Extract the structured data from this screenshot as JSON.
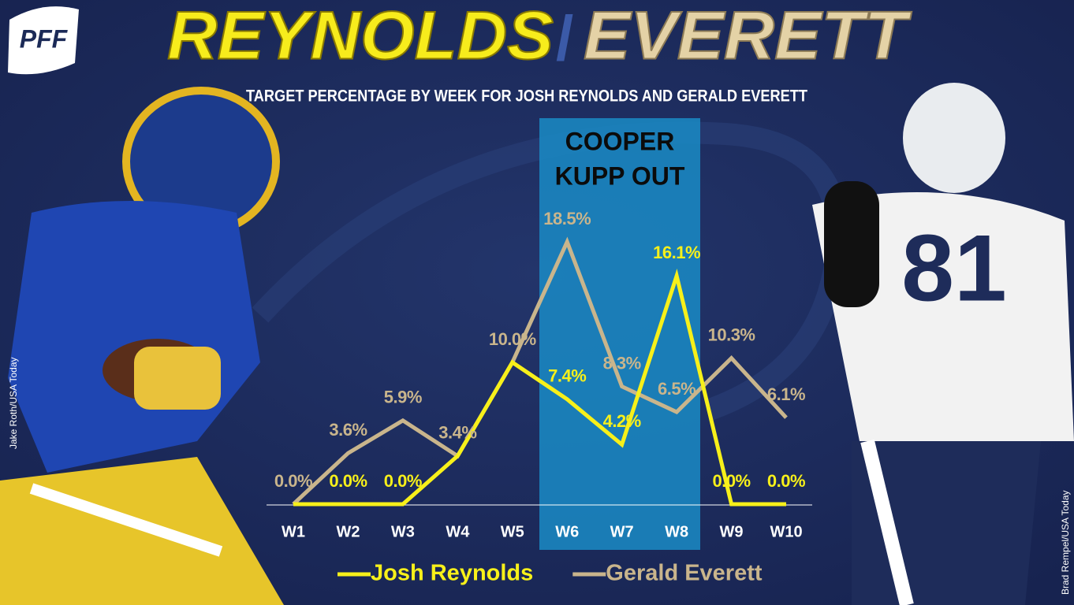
{
  "logo": "PFF",
  "credits": [
    "Jake Roth/USA Today",
    "Brad Rempel/USA Today"
  ],
  "chart_data": {
    "type": "line",
    "title_parts": [
      "REYNOLDS",
      "/",
      "EVERETT"
    ],
    "subtitle": "TARGET PERCENTAGE BY WEEK FOR JOSH REYNOLDS AND GERALD EVERETT",
    "annotation": [
      "COOPER",
      "KUPP OUT"
    ],
    "categories": [
      "W1",
      "W2",
      "W3",
      "W4",
      "W5",
      "W6",
      "W7",
      "W8",
      "W9",
      "W10"
    ],
    "series": [
      {
        "name": "Josh Reynolds",
        "color": "#f7f01a",
        "values": [
          0,
          0,
          0,
          3.4,
          10.0,
          7.4,
          4.2,
          16.1,
          0,
          0
        ],
        "value_labels": [
          null,
          "0.0%",
          "0.0%",
          null,
          null,
          "7.4%",
          "4.2%",
          "16.1%",
          "0.0%",
          "0.0%"
        ]
      },
      {
        "name": "Gerald Everett",
        "color": "#c9b58c",
        "values": [
          0,
          3.6,
          5.9,
          3.4,
          10.0,
          18.5,
          8.3,
          6.5,
          10.3,
          6.1
        ],
        "value_labels": [
          "0.0%",
          "3.6%",
          "5.9%",
          "3.4%",
          "10.0%",
          "18.5%",
          "8.3%",
          "6.5%",
          "10.3%",
          "6.1%"
        ]
      }
    ]
  }
}
